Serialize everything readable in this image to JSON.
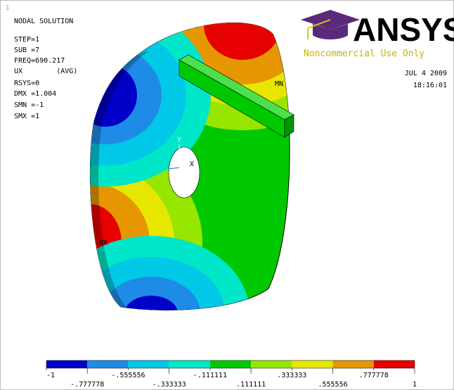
{
  "window_number": "1",
  "info": [
    "NODAL SOLUTION",
    "STEP=1",
    "SUB =7",
    "FREQ=690.217",
    "UX        (AVG)",
    "RSYS=0",
    "DMX =1.004",
    "SMN =-1",
    "SMX =1"
  ],
  "logo": {
    "brand": "ANSYS",
    "notice": "Noncommercial Use Only"
  },
  "date": "JUL  4 2009",
  "time": "18:16:01",
  "plot_labels": {
    "min": "MN",
    "max": "MX",
    "y_axis": "Y",
    "x_axis": "X"
  },
  "legend": {
    "colors": [
      "#0000c8",
      "#1e8ce6",
      "#00c8e6",
      "#00e6c8",
      "#00c800",
      "#96e600",
      "#e6e600",
      "#e69600",
      "#e60000"
    ],
    "labels": [
      "-1",
      "-.777778",
      "-.555556",
      "-.333333",
      "-.111111",
      ".111111",
      ".333333",
      ".555556",
      ".777778",
      "1"
    ]
  }
}
